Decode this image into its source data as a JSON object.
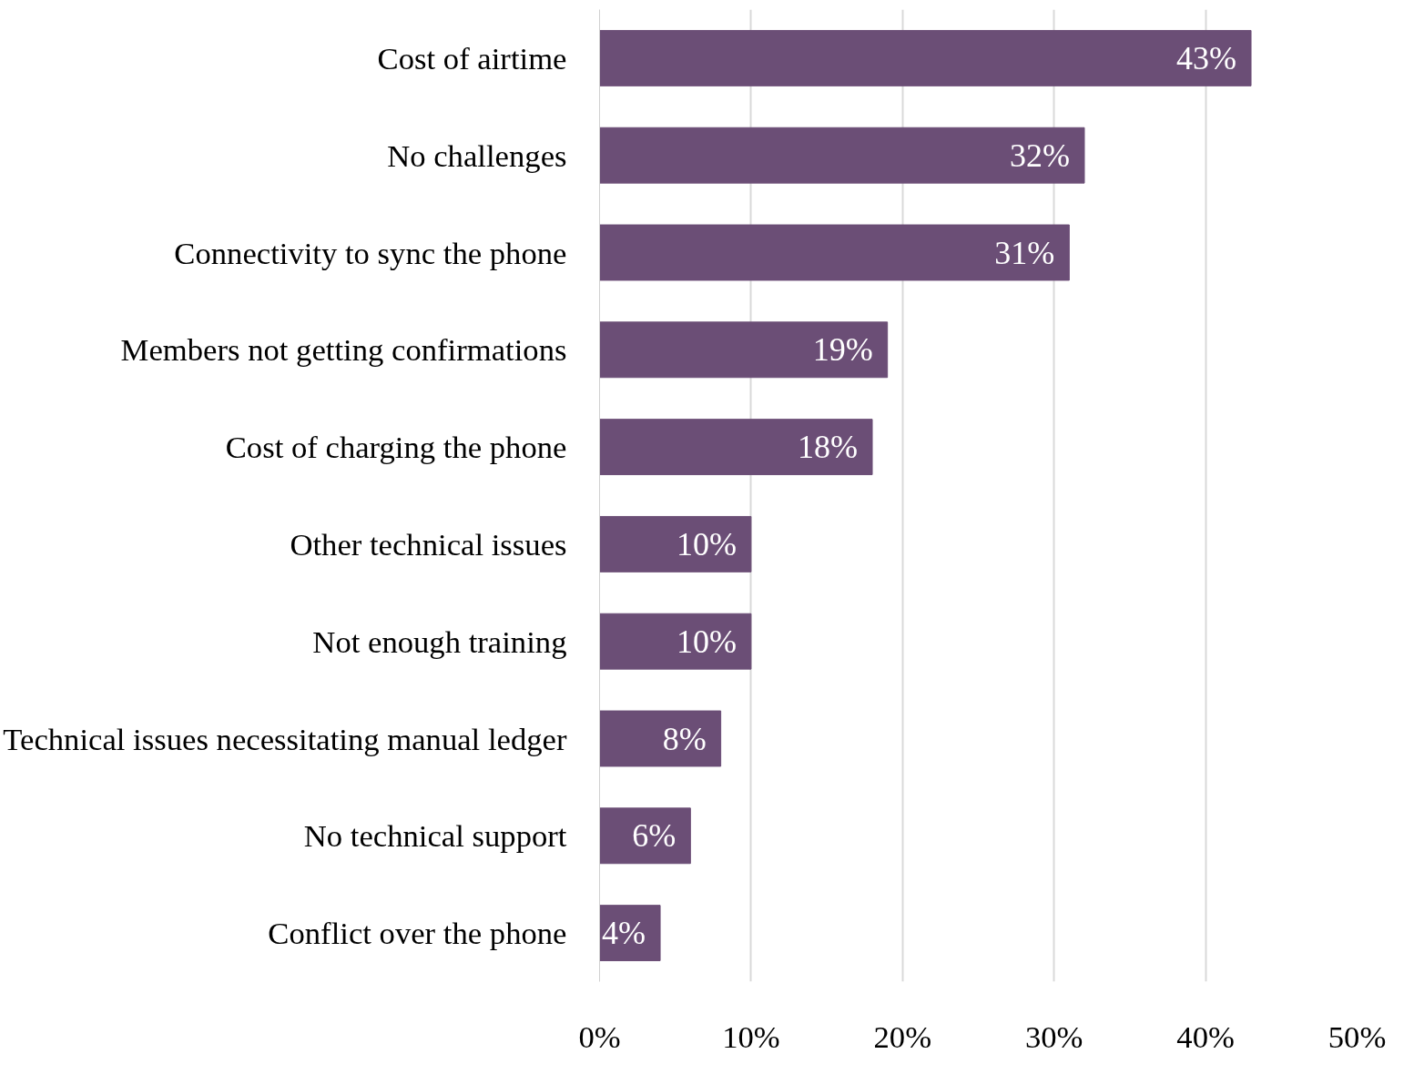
{
  "chart_data": {
    "type": "bar",
    "orientation": "horizontal",
    "categories": [
      "Cost of airtime",
      "No challenges",
      "Connectivity to sync the phone",
      "Members not getting confirmations",
      "Cost of charging the phone",
      "Other technical issues",
      "Not enough training",
      "Technical issues necessitating manual ledger",
      "No technical support",
      "Conflict over the phone"
    ],
    "values": [
      43,
      32,
      31,
      19,
      18,
      10,
      10,
      8,
      6,
      4
    ],
    "value_labels": [
      "43%",
      "32%",
      "31%",
      "19%",
      "18%",
      "10%",
      "10%",
      "8%",
      "6%",
      "4%"
    ],
    "color": "#6b4e76",
    "xlim": [
      0,
      50
    ],
    "xticks": [
      {
        "value": 0,
        "label": "0%"
      },
      {
        "value": 10,
        "label": "10%"
      },
      {
        "value": 20,
        "label": "20%"
      },
      {
        "value": 30,
        "label": "30%"
      },
      {
        "value": 40,
        "label": "40%"
      },
      {
        "value": 50,
        "label": "50%"
      }
    ],
    "grid": "x"
  }
}
